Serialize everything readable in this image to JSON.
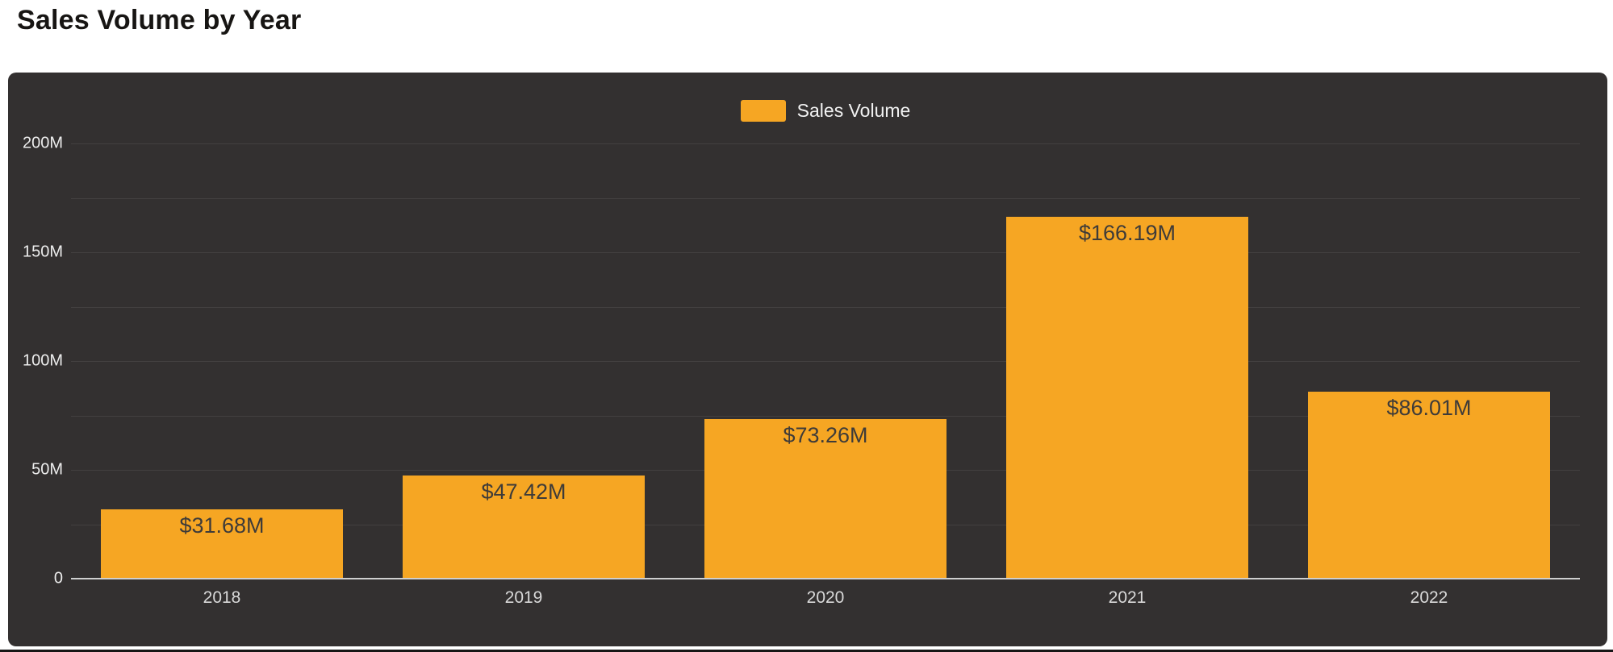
{
  "page": {
    "title": "Sales Volume by Year"
  },
  "legend": {
    "label": "Sales Volume"
  },
  "colors": {
    "bar": "#F6A623",
    "card_bg": "#333030",
    "grid": "rgba(255,255,255,0.08)",
    "axis_line": "#cfcfcf",
    "y_tick_text": "#ededed",
    "x_tick_text": "#d9d9d9",
    "bar_label_text": "#3e3b39",
    "legend_text": "#f2f2f2",
    "title_text": "#171513",
    "page_bg": "#ffffff",
    "bottom_edge": "#161616"
  },
  "chart_data": {
    "type": "bar",
    "title": "Sales Volume by Year",
    "categories": [
      "2018",
      "2019",
      "2020",
      "2021",
      "2022"
    ],
    "series": [
      {
        "name": "Sales Volume",
        "values": [
          31.68,
          47.42,
          73.26,
          166.19,
          86.01
        ],
        "value_labels": [
          "$31.68M",
          "$47.42M",
          "$73.26M",
          "$166.19M",
          "$86.01M"
        ]
      }
    ],
    "y_axis": {
      "ticks": [
        0,
        50,
        100,
        150,
        200
      ],
      "tick_labels": [
        "0",
        "50M",
        "100M",
        "150M",
        "200M"
      ],
      "minor_grid_step": 25,
      "ylim": [
        0,
        200
      ]
    },
    "grid": "horizontal",
    "legend_position": "top-center"
  }
}
